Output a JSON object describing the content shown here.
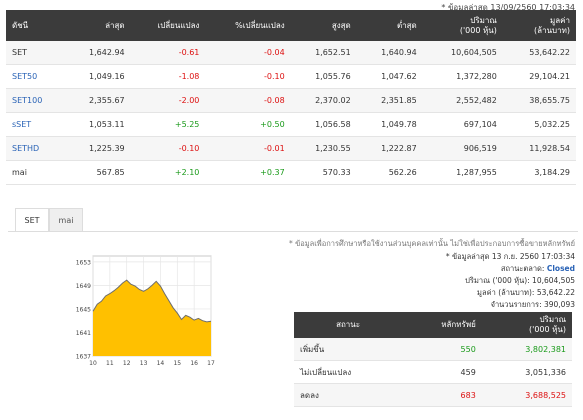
{
  "last_update": "* ข้อมูลล่าสุด 13/09/2560 17:03:34",
  "table": {
    "headers": {
      "index": "ดัชนี",
      "last": "ล่าสุด",
      "change": "เปลี่ยนแปลง",
      "pct_change": "%เปลี่ยนแปลง",
      "high": "สูงสุด",
      "low": "ต่ำสุด",
      "volume_1": "ปริมาณ",
      "volume_2": "('000 หุ้น)",
      "value_1": "มูลค่า",
      "value_2": "(ล้านบาท)"
    },
    "rows": [
      {
        "name": "SET",
        "last": "1,642.94",
        "change": "-0.61",
        "pct": "-0.04",
        "high": "1,652.51",
        "low": "1,640.94",
        "volume": "10,604,505",
        "value": "53,642.22"
      },
      {
        "name": "SET50",
        "last": "1,049.16",
        "change": "-1.08",
        "pct": "-0.10",
        "high": "1,055.76",
        "low": "1,047.62",
        "volume": "1,372,280",
        "value": "29,104.21"
      },
      {
        "name": "SET100",
        "last": "2,355.67",
        "change": "-2.00",
        "pct": "-0.08",
        "high": "2,370.02",
        "low": "2,351.85",
        "volume": "2,552,482",
        "value": "38,655.75"
      },
      {
        "name": "sSET",
        "last": "1,053.11",
        "change": "+5.25",
        "pct": "+0.50",
        "high": "1,056.58",
        "low": "1,049.78",
        "volume": "697,104",
        "value": "5,032.25"
      },
      {
        "name": "SETHD",
        "last": "1,225.39",
        "change": "-0.10",
        "pct": "-0.01",
        "high": "1,230.55",
        "low": "1,222.87",
        "volume": "906,519",
        "value": "11,928.54"
      },
      {
        "name": "mai",
        "last": "567.85",
        "change": "+2.10",
        "pct": "+0.37",
        "high": "570.33",
        "low": "562.26",
        "volume": "1,287,955",
        "value": "3,184.29"
      }
    ]
  },
  "tabs": [
    "SET",
    "mai"
  ],
  "disclaimer": "* ข้อมูลเพื่อการศึกษาหรือใช้งานส่วนบุคคลเท่านั้น ไม่ใช่เพื่อประกอบการซื้อขายหลักทรัพย์",
  "market_info": {
    "updated": "* ข้อมูลล่าสุด 13 ก.ย. 2560 17:03:34",
    "status_label": "สถานะตลาด:",
    "status_value": "Closed",
    "volume_label": "ปริมาณ ('000 หุ้น):",
    "volume_value": "10,604,505",
    "value_label": "มูลค่า (ล้านบาท):",
    "value_value": "53,642.22",
    "trades_label": "จำนวนรายการ:",
    "trades_value": "390,093"
  },
  "summary": {
    "headers": {
      "status": "สถานะ",
      "securities": "หลักทรัพย์",
      "volume_1": "ปริมาณ",
      "volume_2": "('000 หุ้น)"
    },
    "rows": [
      {
        "label": "เพิ่มขึ้น",
        "count": "550",
        "volume": "3,802,381"
      },
      {
        "label": "ไม่เปลี่ยนแปลง",
        "count": "459",
        "volume": "3,051,336"
      },
      {
        "label": "ลดลง",
        "count": "683",
        "volume": "3,688,525"
      }
    ]
  },
  "colors": {
    "header_bg": "#3b3b3b",
    "positive": "#1a9a1a",
    "negative": "#dd1111",
    "link": "#2a63b6",
    "area_fill": "#ffc000"
  },
  "chart_data": {
    "type": "area",
    "x_tick_labels": [
      "10",
      "11",
      "12",
      "13",
      "14",
      "15",
      "16",
      "17"
    ],
    "y_tick_labels": [
      "1637",
      "1641",
      "1645",
      "1649",
      "1653"
    ],
    "ylim": [
      1637,
      1654
    ],
    "x": [
      10.0,
      10.25,
      10.5,
      10.75,
      11.0,
      11.25,
      11.5,
      11.75,
      12.0,
      12.25,
      12.5,
      12.75,
      13.0,
      13.25,
      13.5,
      13.75,
      14.0,
      14.25,
      14.5,
      14.75,
      15.0,
      15.25,
      15.5,
      15.75,
      16.0,
      16.25,
      16.5,
      16.75,
      17.0
    ],
    "values": [
      1644.6,
      1645.8,
      1646.3,
      1647.2,
      1647.6,
      1648.1,
      1648.7,
      1649.4,
      1649.9,
      1649.2,
      1648.9,
      1648.3,
      1648.0,
      1648.4,
      1649.0,
      1649.7,
      1648.9,
      1647.6,
      1646.4,
      1645.2,
      1644.3,
      1643.2,
      1643.9,
      1643.6,
      1643.1,
      1643.4,
      1643.0,
      1642.8,
      1642.9
    ]
  }
}
